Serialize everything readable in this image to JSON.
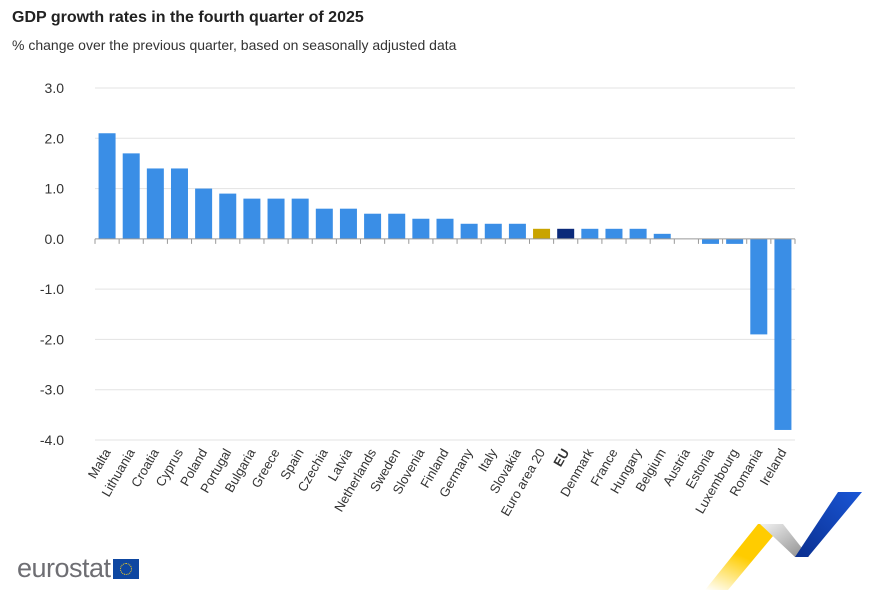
{
  "chart_data": {
    "type": "bar",
    "title": "GDP growth rates in the fourth quarter of 2025",
    "subtitle": "% change over the previous quarter, based on seasonally adjusted data",
    "xlabel": "",
    "ylabel": "",
    "ylim": [
      -4.0,
      3.0
    ],
    "yticks": [
      "3.0",
      "2.0",
      "1.0",
      "0.0",
      "-1.0",
      "-2.0",
      "-3.0",
      "-4.0"
    ],
    "grid": true,
    "categories": [
      "Malta",
      "Lithuania",
      "Croatia",
      "Cyprus",
      "Poland",
      "Portugal",
      "Bulgaria",
      "Greece",
      "Spain",
      "Czechia",
      "Latvia",
      "Netherlands",
      "Sweden",
      "Slovenia",
      "Finland",
      "Germany",
      "Italy",
      "Slovakia",
      "Euro area 20",
      "EU",
      "Denmark",
      "France",
      "Hungary",
      "Belgium",
      "Austria",
      "Estonia",
      "Luxembourg",
      "Romania",
      "Ireland"
    ],
    "values": [
      2.1,
      1.7,
      1.4,
      1.4,
      1.0,
      0.9,
      0.8,
      0.8,
      0.8,
      0.6,
      0.6,
      0.5,
      0.5,
      0.4,
      0.4,
      0.3,
      0.3,
      0.3,
      0.2,
      0.2,
      0.2,
      0.2,
      0.2,
      0.1,
      0.0,
      -0.1,
      -0.1,
      -1.9,
      -3.8
    ],
    "bold_categories": [
      "EU"
    ],
    "colors": {
      "default": "#3a8ee6",
      "Euro area 20": "#c9a400",
      "EU": "#0b2a7a"
    }
  },
  "logo": {
    "text": "eurostat"
  }
}
